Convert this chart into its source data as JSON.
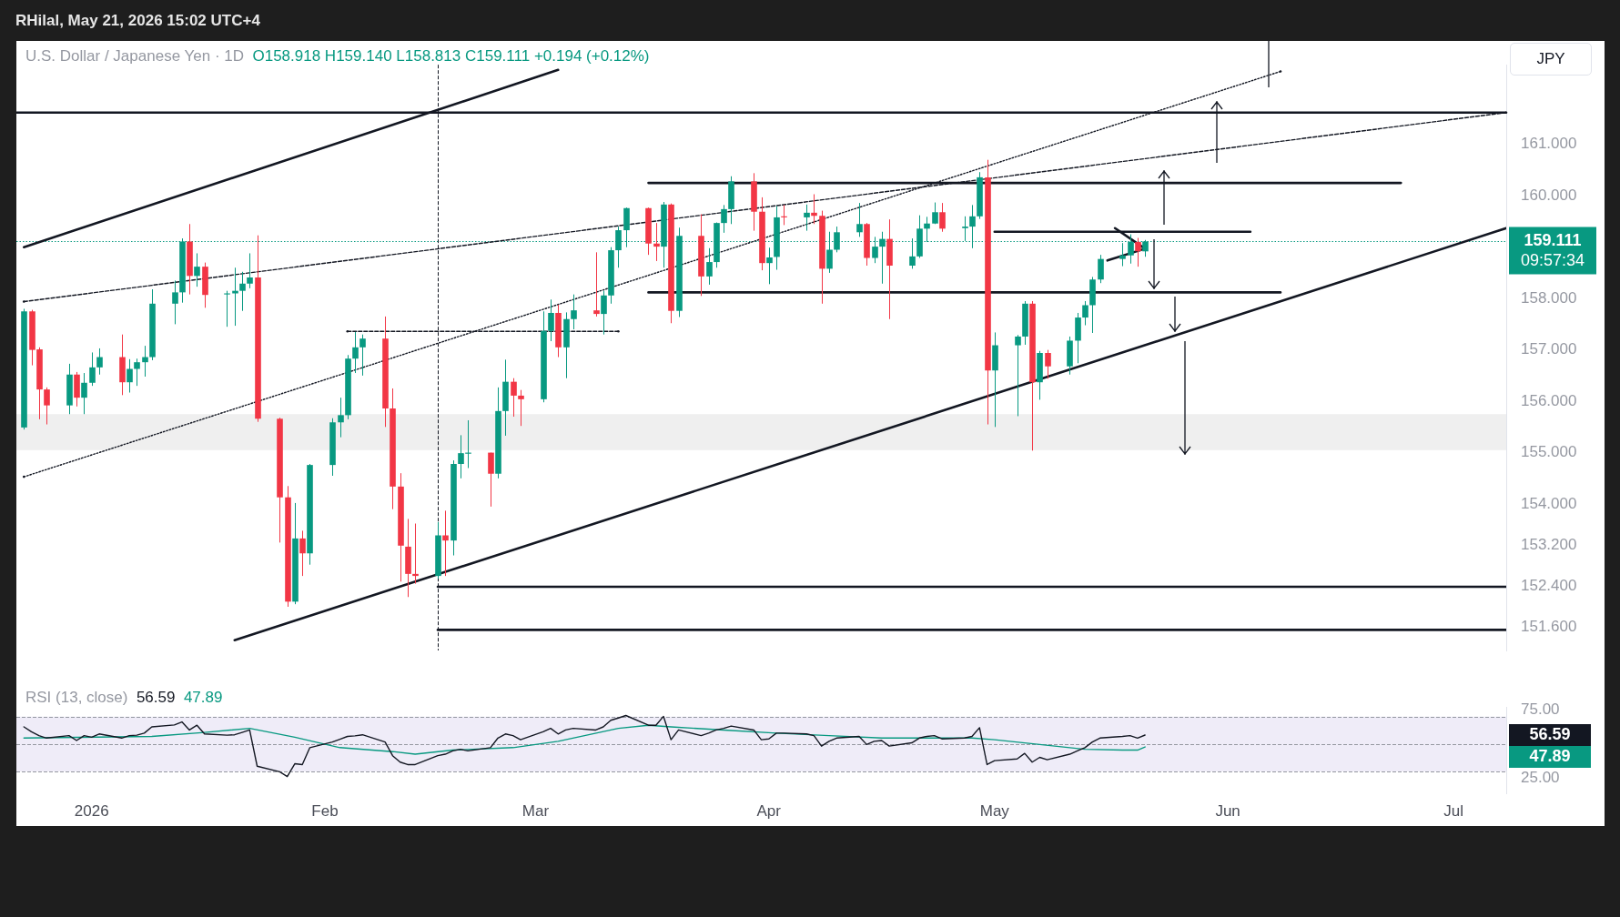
{
  "chart_data": [
    {
      "type": "candlestick",
      "title": "U.S. Dollar / Japanese Yen · 1D",
      "subtitle": "O158.918 H159.140 L158.813 C159.111 +0.194 (+0.12%)",
      "annotations": [
        "RHilal, May 21, 2026 15:02 UTC+4",
        "JPY",
        "09:57:34"
      ],
      "x": [
        "2025-12-23",
        "2025-12-24",
        "2025-12-25",
        "2025-12-26",
        "2025-12-29",
        "2025-12-30",
        "2025-12-31",
        "2026-01-01",
        "2026-01-02",
        "2026-01-05",
        "2026-01-06",
        "2026-01-07",
        "2026-01-08",
        "2026-01-09",
        "2026-01-12",
        "2026-01-13",
        "2026-01-14",
        "2026-01-15",
        "2026-01-16",
        "2026-01-19",
        "2026-01-20",
        "2026-01-21",
        "2026-01-22",
        "2026-01-23",
        "2026-01-26",
        "2026-01-27",
        "2026-01-28",
        "2026-01-29",
        "2026-01-30",
        "2026-02-02",
        "2026-02-03",
        "2026-02-04",
        "2026-02-05",
        "2026-02-06",
        "2026-02-09",
        "2026-02-10",
        "2026-02-11",
        "2026-02-12",
        "2026-02-13",
        "2026-02-16",
        "2026-02-17",
        "2026-02-18",
        "2026-02-19",
        "2026-02-20",
        "2026-02-23",
        "2026-02-24",
        "2026-02-25",
        "2026-02-26",
        "2026-02-27",
        "2026-03-02",
        "2026-03-03",
        "2026-03-04",
        "2026-03-05",
        "2026-03-06",
        "2026-03-09",
        "2026-03-10",
        "2026-03-11",
        "2026-03-12",
        "2026-03-13",
        "2026-03-16",
        "2026-03-17",
        "2026-03-18",
        "2026-03-19",
        "2026-03-20",
        "2026-03-23",
        "2026-03-24",
        "2026-03-25",
        "2026-03-26",
        "2026-03-27",
        "2026-03-30",
        "2026-03-31",
        "2026-04-01",
        "2026-04-02",
        "2026-04-03",
        "2026-04-06",
        "2026-04-07",
        "2026-04-08",
        "2026-04-09",
        "2026-04-10",
        "2026-04-13",
        "2026-04-14",
        "2026-04-15",
        "2026-04-16",
        "2026-04-17",
        "2026-04-20",
        "2026-04-21",
        "2026-04-22",
        "2026-04-23",
        "2026-04-24",
        "2026-04-27",
        "2026-04-28",
        "2026-04-29",
        "2026-04-30",
        "2026-05-01",
        "2026-05-04",
        "2026-05-05",
        "2026-05-06",
        "2026-05-07",
        "2026-05-08",
        "2026-05-11",
        "2026-05-12",
        "2026-05-13",
        "2026-05-14",
        "2026-05-15",
        "2026-05-18",
        "2026-05-19",
        "2026-05-20",
        "2026-05-21"
      ],
      "ohlc": [
        [
          155.49,
          157.8,
          155.45,
          157.75
        ],
        [
          157.75,
          157.78,
          156.7,
          157.0
        ],
        [
          157.01,
          157.05,
          155.65,
          156.23
        ],
        [
          156.23,
          156.27,
          155.55,
          155.92
        ],
        [
          155.92,
          156.73,
          155.75,
          156.52
        ],
        [
          156.52,
          156.57,
          155.9,
          156.07
        ],
        [
          156.07,
          156.55,
          155.75,
          156.36
        ],
        [
          156.36,
          156.95,
          156.3,
          156.66
        ],
        [
          156.66,
          157.03,
          156.52,
          156.86
        ],
        [
          156.86,
          157.3,
          156.12,
          156.37
        ],
        [
          156.37,
          156.82,
          156.17,
          156.63
        ],
        [
          156.63,
          156.83,
          156.3,
          156.76
        ],
        [
          156.76,
          157.08,
          156.48,
          156.86
        ],
        [
          156.86,
          158.18,
          156.8,
          157.9
        ],
        [
          157.9,
          158.35,
          157.5,
          158.12
        ],
        [
          158.12,
          159.17,
          157.92,
          159.11
        ],
        [
          159.11,
          159.45,
          158.08,
          158.44
        ],
        [
          158.44,
          158.88,
          158.23,
          158.62
        ],
        [
          158.62,
          158.7,
          157.82,
          158.07
        ],
        [
          158.08,
          158.15,
          157.45,
          158.1
        ],
        [
          158.1,
          158.6,
          157.47,
          158.15
        ],
        [
          158.15,
          158.52,
          157.76,
          158.29
        ],
        [
          158.29,
          158.88,
          158.2,
          158.41
        ],
        [
          158.41,
          159.23,
          155.6,
          155.66
        ],
        [
          155.66,
          155.68,
          153.25,
          154.13
        ],
        [
          154.13,
          154.35,
          152.0,
          152.1
        ],
        [
          152.1,
          154.02,
          152.05,
          153.33
        ],
        [
          153.33,
          153.48,
          152.6,
          153.04
        ],
        [
          153.04,
          154.78,
          152.82,
          154.76
        ],
        [
          154.76,
          155.67,
          154.55,
          155.59
        ],
        [
          155.59,
          156.07,
          155.3,
          155.73
        ],
        [
          155.73,
          156.9,
          155.65,
          156.83
        ],
        [
          156.83,
          157.35,
          156.55,
          157.05
        ],
        [
          157.05,
          157.3,
          156.5,
          157.22
        ],
        [
          157.22,
          157.65,
          155.5,
          155.86
        ],
        [
          155.86,
          156.25,
          153.9,
          154.34
        ],
        [
          154.34,
          154.6,
          152.49,
          153.19
        ],
        [
          153.17,
          153.71,
          152.19,
          152.64
        ],
        [
          152.64,
          153.62,
          152.45,
          152.6
        ],
        [
          152.6,
          153.65,
          152.55,
          153.39
        ],
        [
          153.39,
          153.87,
          152.6,
          153.29
        ],
        [
          153.29,
          154.85,
          153.0,
          154.78
        ],
        [
          154.78,
          155.34,
          154.5,
          154.99
        ],
        [
          154.98,
          155.63,
          154.7,
          155.0
        ],
        [
          155.0,
          155.0,
          153.95,
          154.59
        ],
        [
          154.59,
          156.27,
          154.5,
          155.81
        ],
        [
          155.81,
          156.81,
          155.33,
          156.38
        ],
        [
          156.38,
          156.45,
          155.7,
          156.11
        ],
        [
          156.11,
          156.22,
          155.52,
          156.04
        ],
        [
          156.04,
          157.75,
          155.98,
          157.37
        ],
        [
          157.37,
          157.98,
          157.17,
          157.72
        ],
        [
          157.72,
          157.88,
          156.86,
          157.05
        ],
        [
          157.05,
          157.73,
          156.45,
          157.6
        ],
        [
          157.6,
          158.08,
          157.4,
          157.77
        ],
        [
          157.77,
          158.9,
          157.65,
          157.7
        ],
        [
          157.7,
          158.15,
          157.3,
          158.06
        ],
        [
          158.06,
          159.0,
          157.9,
          158.94
        ],
        [
          158.94,
          159.4,
          158.6,
          159.33
        ],
        [
          159.33,
          159.77,
          159.0,
          159.76
        ],
        [
          159.76,
          159.77,
          158.85,
          159.07
        ],
        [
          159.07,
          159.47,
          158.73,
          159.01
        ],
        [
          159.01,
          159.88,
          158.6,
          159.83
        ],
        [
          159.83,
          159.85,
          157.52,
          157.76
        ],
        [
          157.76,
          159.38,
          157.64,
          159.22
        ],
        [
          159.22,
          159.64,
          158.05,
          158.43
        ],
        [
          158.43,
          158.98,
          158.27,
          158.71
        ],
        [
          158.71,
          159.48,
          158.6,
          159.47
        ],
        [
          159.47,
          159.82,
          159.28,
          159.74
        ],
        [
          159.74,
          160.38,
          159.45,
          160.28
        ],
        [
          160.28,
          160.44,
          159.32,
          159.69
        ],
        [
          159.69,
          159.97,
          158.55,
          158.69
        ],
        [
          158.69,
          158.99,
          158.28,
          158.8
        ],
        [
          158.81,
          159.8,
          158.56,
          159.58
        ],
        [
          159.6,
          159.82,
          159.43,
          159.58
        ],
        [
          159.58,
          159.83,
          159.32,
          159.67
        ],
        [
          159.67,
          160.03,
          159.45,
          159.61
        ],
        [
          159.61,
          159.71,
          157.9,
          158.58
        ],
        [
          158.58,
          159.3,
          158.5,
          158.95
        ],
        [
          158.95,
          159.4,
          158.9,
          159.29
        ],
        [
          159.29,
          159.86,
          159.2,
          159.45
        ],
        [
          159.45,
          159.47,
          158.64,
          158.79
        ],
        [
          158.79,
          159.2,
          158.69,
          159.01
        ],
        [
          159.01,
          159.3,
          158.29,
          159.16
        ],
        [
          159.16,
          159.54,
          157.6,
          158.64
        ],
        [
          158.64,
          159.17,
          158.58,
          158.82
        ],
        [
          158.82,
          159.62,
          158.79,
          159.36
        ],
        [
          159.36,
          159.59,
          159.1,
          159.46
        ],
        [
          159.46,
          159.87,
          159.45,
          159.68
        ],
        [
          159.68,
          159.86,
          159.3,
          159.36
        ],
        [
          159.37,
          159.6,
          159.12,
          159.4
        ],
        [
          159.4,
          159.82,
          158.98,
          159.6
        ],
        [
          159.6,
          160.46,
          159.55,
          160.36
        ],
        [
          160.36,
          160.7,
          155.55,
          156.6
        ],
        [
          156.6,
          157.34,
          155.5,
          157.09
        ],
        [
          157.09,
          157.29,
          155.71,
          157.26
        ],
        [
          157.26,
          157.95,
          157.1,
          157.9
        ],
        [
          157.9,
          157.95,
          155.04,
          156.37
        ],
        [
          156.37,
          156.98,
          156.03,
          156.94
        ],
        [
          156.94,
          157.0,
          156.44,
          156.68
        ],
        [
          156.68,
          157.26,
          156.52,
          157.18
        ],
        [
          157.18,
          157.72,
          156.74,
          157.63
        ],
        [
          157.63,
          157.95,
          157.48,
          157.87
        ],
        [
          157.87,
          158.42,
          157.33,
          158.37
        ],
        [
          158.37,
          158.85,
          158.3,
          158.77
        ],
        [
          158.77,
          159.08,
          158.63,
          158.84
        ],
        [
          158.84,
          159.25,
          158.68,
          159.1
        ],
        [
          159.1,
          159.18,
          158.62,
          158.92
        ],
        [
          158.918,
          159.14,
          158.813,
          159.111
        ]
      ],
      "series": [
        {
          "type": "line",
          "color": "#131722",
          "line_style": "solid",
          "x": [
            "2025-12-23",
            "2026-03-04"
          ],
          "values": [
            159.0,
            162.45
          ]
        },
        {
          "type": "line",
          "color": "#131722",
          "line_style": "solid",
          "x": [
            "2026-01-20",
            "2026-07-08"
          ],
          "values": [
            151.35,
            159.37
          ]
        },
        {
          "type": "line",
          "color": "#131722",
          "line_style": "dashed",
          "x": [
            "2025-12-23",
            "2026-07-08"
          ],
          "values": [
            157.94,
            161.62
          ]
        },
        {
          "type": "line",
          "color": "#131722",
          "line_style": "dotted",
          "x": [
            "2025-12-23",
            "2026-06-08"
          ],
          "values": [
            154.53,
            162.42
          ]
        },
        {
          "type": "line",
          "color": "#131722",
          "line_style": "solid",
          "x": [
            "2025-12-22",
            "2026-07-08"
          ],
          "values": [
            161.62,
            161.62
          ]
        },
        {
          "type": "line",
          "color": "#131722",
          "line_style": "solid",
          "x": [
            "2026-03-16",
            "2026-06-24"
          ],
          "values": [
            160.25,
            160.25
          ]
        },
        {
          "type": "line",
          "color": "#131722",
          "line_style": "solid",
          "x": [
            "2026-03-16",
            "2026-06-08"
          ],
          "values": [
            158.12,
            158.12
          ]
        },
        {
          "type": "line",
          "color": "#131722",
          "line_style": "solid",
          "x": [
            "2026-02-16",
            "2026-07-08"
          ],
          "values": [
            152.39,
            152.39
          ]
        },
        {
          "type": "line",
          "color": "#131722",
          "line_style": "solid",
          "x": [
            "2026-02-16",
            "2026-07-08"
          ],
          "values": [
            151.55,
            151.55
          ]
        },
        {
          "type": "line",
          "color": "#131722",
          "line_style": "solid",
          "x": [
            "2026-05-01",
            "2026-06-04"
          ],
          "values": [
            159.3,
            159.3
          ]
        },
        {
          "type": "line",
          "color": "#131722",
          "line_style": "solid",
          "x": [
            "2026-05-16",
            "2026-05-21"
          ],
          "values": [
            158.74,
            158.97
          ]
        },
        {
          "type": "line",
          "color": "#131722",
          "line_style": "solid",
          "x": [
            "2026-05-17",
            "2026-05-21"
          ],
          "values": [
            159.37,
            158.97
          ]
        },
        {
          "type": "line",
          "color": "#131722",
          "line_style": "dashed",
          "x": [
            "2026-02-04",
            "2026-03-12"
          ],
          "values": [
            157.36,
            157.36
          ]
        }
      ],
      "xlim": [
        "2025-12-22",
        "2026-07-08"
      ],
      "ylim": [
        151.15,
        162.55
      ],
      "yticks": [
        {
          "value": 161,
          "label": "161.000"
        },
        {
          "value": 160,
          "label": "160.000"
        },
        {
          "value": 158,
          "label": "158.000"
        },
        {
          "value": 157,
          "label": "157.000"
        },
        {
          "value": 156,
          "label": "156.000"
        },
        {
          "value": 155,
          "label": "155.000"
        },
        {
          "value": 154,
          "label": "154.000"
        },
        {
          "value": 153.2,
          "label": "153.200"
        },
        {
          "value": 152.4,
          "label": "152.400"
        },
        {
          "value": 151.6,
          "label": "151.600"
        }
      ],
      "ref_lines": [
        {
          "axis": "y",
          "value": 159.111,
          "label": "159.111",
          "color": "#089981",
          "line_style": "dotted"
        },
        {
          "axis": "x",
          "value": "2026-02-16",
          "color": "#131722",
          "line_style": "dashed"
        }
      ],
      "bands": [
        {
          "axis": "y",
          "from": 155.05,
          "to": 155.75,
          "color": "#efefef"
        }
      ],
      "marker": "none",
      "grid": false,
      "legend": false,
      "tick_labels": "y"
    },
    {
      "type": "line",
      "title": "RSI (13, close)",
      "annotations": [
        "56.59",
        "47.89"
      ],
      "x": [
        "2025-12-23",
        "2025-12-24",
        "2025-12-25",
        "2025-12-26",
        "2025-12-29",
        "2025-12-30",
        "2025-12-31",
        "2026-01-01",
        "2026-01-02",
        "2026-01-05",
        "2026-01-06",
        "2026-01-07",
        "2026-01-08",
        "2026-01-09",
        "2026-01-12",
        "2026-01-13",
        "2026-01-14",
        "2026-01-15",
        "2026-01-16",
        "2026-01-19",
        "2026-01-20",
        "2026-01-21",
        "2026-01-22",
        "2026-01-23",
        "2026-01-26",
        "2026-01-27",
        "2026-01-28",
        "2026-01-29",
        "2026-01-30",
        "2026-02-02",
        "2026-02-03",
        "2026-02-04",
        "2026-02-05",
        "2026-02-06",
        "2026-02-09",
        "2026-02-10",
        "2026-02-11",
        "2026-02-12",
        "2026-02-13",
        "2026-02-16",
        "2026-02-17",
        "2026-02-18",
        "2026-02-19",
        "2026-02-20",
        "2026-02-23",
        "2026-02-24",
        "2026-02-25",
        "2026-02-26",
        "2026-02-27",
        "2026-03-02",
        "2026-03-03",
        "2026-03-04",
        "2026-03-05",
        "2026-03-06",
        "2026-03-09",
        "2026-03-10",
        "2026-03-11",
        "2026-03-12",
        "2026-03-13",
        "2026-03-16",
        "2026-03-17",
        "2026-03-18",
        "2026-03-19",
        "2026-03-20",
        "2026-03-23",
        "2026-03-24",
        "2026-03-25",
        "2026-03-26",
        "2026-03-27",
        "2026-03-30",
        "2026-03-31",
        "2026-04-01",
        "2026-04-02",
        "2026-04-03",
        "2026-04-06",
        "2026-04-07",
        "2026-04-08",
        "2026-04-09",
        "2026-04-10",
        "2026-04-13",
        "2026-04-14",
        "2026-04-15",
        "2026-04-16",
        "2026-04-17",
        "2026-04-20",
        "2026-04-21",
        "2026-04-22",
        "2026-04-23",
        "2026-04-24",
        "2026-04-27",
        "2026-04-28",
        "2026-04-29",
        "2026-04-30",
        "2026-05-01",
        "2026-05-04",
        "2026-05-05",
        "2026-05-06",
        "2026-05-07",
        "2026-05-08",
        "2026-05-11",
        "2026-05-12",
        "2026-05-13",
        "2026-05-14",
        "2026-05-15",
        "2026-05-18",
        "2026-05-19",
        "2026-05-20",
        "2026-05-21"
      ],
      "series": [
        {
          "color": "#131722",
          "values": [
            62.6,
            59,
            56.2,
            54.4,
            56.2,
            52.6,
            56.2,
            55,
            57.4,
            54.4,
            56.2,
            56.5,
            58,
            62.6,
            64,
            66.2,
            60.3,
            63.8,
            57.4,
            56.5,
            56.8,
            58.5,
            60.3,
            33.8,
            29.7,
            26.2,
            35.6,
            35,
            47.4,
            51.5,
            53.5,
            55.6,
            56,
            56.8,
            51.5,
            41.5,
            36.8,
            35,
            35,
            41.5,
            42.6,
            45,
            46.2,
            45,
            47.4,
            54.4,
            57.4,
            56.2,
            53.2,
            59,
            61.5,
            57.4,
            60.3,
            61.5,
            60.3,
            62.6,
            67.4,
            69.1,
            70.9,
            63.8,
            63.8,
            70.3,
            53.2,
            60.3,
            56.2,
            58,
            60.3,
            61.5,
            63.2,
            60.3,
            53.2,
            53.8,
            58,
            58,
            57.4,
            56.2,
            48.5,
            52,
            54.4,
            55.6,
            49.7,
            52,
            52.6,
            48.5,
            50.9,
            54.4,
            55.6,
            56.2,
            53.8,
            54.4,
            55.6,
            62,
            35,
            37.9,
            39.1,
            43.2,
            36.8,
            40.3,
            38.5,
            42.6,
            45,
            47.4,
            51.5,
            54.4,
            55.6,
            56.2,
            54.4,
            56.59
          ]
        },
        {
          "color": "#089981",
          "x": [
            "2025-12-23",
            "2026-01-09",
            "2026-01-16",
            "2026-01-22",
            "2026-01-28",
            "2026-02-03",
            "2026-02-10",
            "2026-02-13",
            "2026-02-18",
            "2026-02-26",
            "2026-03-04",
            "2026-03-12",
            "2026-03-16",
            "2026-03-19",
            "2026-03-26",
            "2026-04-02",
            "2026-04-09",
            "2026-04-16",
            "2026-04-28",
            "2026-05-01",
            "2026-05-07",
            "2026-05-13",
            "2026-05-18",
            "2026-05-20",
            "2026-05-21"
          ],
          "values": [
            54.4,
            55.6,
            58.5,
            61.5,
            55,
            47.4,
            44.5,
            42.6,
            45.6,
            47.4,
            52,
            61.5,
            63.8,
            62.6,
            60.3,
            58,
            56.2,
            54.4,
            54.4,
            53.2,
            49.7,
            46.2,
            45.6,
            45.6,
            47.89
          ]
        }
      ],
      "xlim": [
        "2025-12-22",
        "2026-07-08"
      ],
      "xticks": [
        {
          "value": "2026-01-01",
          "label": "2026"
        },
        {
          "value": "2026-02-01",
          "label": "Feb"
        },
        {
          "value": "2026-03-01",
          "label": "Mar"
        },
        {
          "value": "2026-04-01",
          "label": "Apr"
        },
        {
          "value": "2026-05-01",
          "label": "May"
        },
        {
          "value": "2026-06-01",
          "label": "Jun"
        },
        {
          "value": "2026-07-01",
          "label": "Jul"
        }
      ],
      "ylim": [
        14,
        77.1
      ],
      "yticks": [
        {
          "value": 75,
          "label": "75.00"
        },
        {
          "value": 25,
          "label": "25.00"
        }
      ],
      "ref_lines": [
        {
          "axis": "y",
          "value": 70,
          "color": "#9598a1",
          "line_style": "dashed"
        },
        {
          "axis": "y",
          "value": 50,
          "color": "#9598a1",
          "line_style": "dashed"
        },
        {
          "axis": "y",
          "value": 30,
          "color": "#9598a1",
          "line_style": "dashed"
        }
      ],
      "bands": [
        {
          "axis": "y",
          "from": 30,
          "to": 70,
          "color": "#efecf8"
        }
      ],
      "marker": "none",
      "grid": false,
      "legend": false
    }
  ]
}
